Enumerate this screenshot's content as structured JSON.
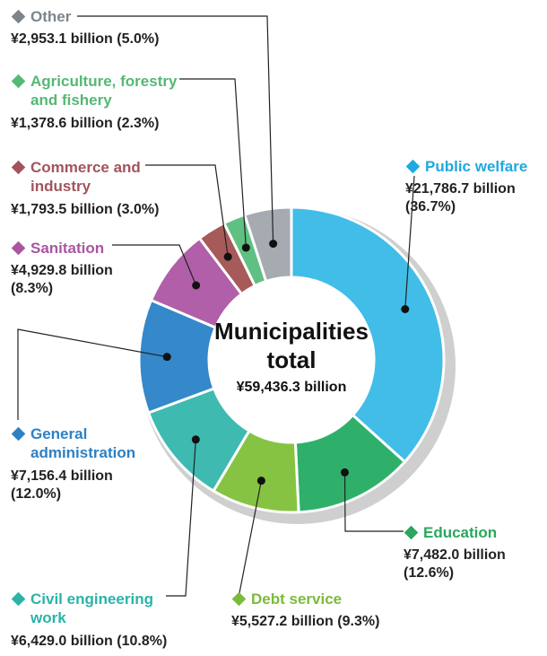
{
  "chart_data": {
    "type": "pie",
    "donut": true,
    "center_title": "Municipalities total",
    "center_title_lines": [
      "Municipalities",
      "total"
    ],
    "center_value": "¥59,436.3 billion",
    "total": 59436.3,
    "unit": "¥ billion",
    "slices": [
      {
        "key": "public_welfare",
        "name": "Public welfare",
        "name_lines": [
          "Public welfare"
        ],
        "value": 21786.7,
        "percent": 36.7,
        "value_lines": [
          "¥21,786.7 billion",
          "(36.7%)"
        ],
        "color": "#41bde8",
        "label_color": "#1ea9e0"
      },
      {
        "key": "education",
        "name": "Education",
        "name_lines": [
          "Education"
        ],
        "value": 7482.0,
        "percent": 12.6,
        "value_lines": [
          "¥7,482.0 billion",
          "(12.6%)"
        ],
        "color": "#2fb06a",
        "label_color": "#2aa65e"
      },
      {
        "key": "debt_service",
        "name": "Debt service",
        "name_lines": [
          "Debt service"
        ],
        "value": 5527.2,
        "percent": 9.3,
        "value_lines": [
          "¥5,527.2 billion (9.3%)"
        ],
        "color": "#86c342",
        "label_color": "#7cba3b"
      },
      {
        "key": "civil_engineering",
        "name": "Civil engineering work",
        "name_lines": [
          "Civil engineering",
          "work"
        ],
        "value": 6429.0,
        "percent": 10.8,
        "value_lines": [
          "¥6,429.0 billion (10.8%)"
        ],
        "color": "#3ebab0",
        "label_color": "#2bb3a8"
      },
      {
        "key": "general_admin",
        "name": "General administration",
        "name_lines": [
          "General",
          "administration"
        ],
        "value": 7156.4,
        "percent": 12.0,
        "value_lines": [
          "¥7,156.4 billion",
          "(12.0%)"
        ],
        "color": "#3588c9",
        "label_color": "#2e80c4"
      },
      {
        "key": "sanitation",
        "name": "Sanitation",
        "name_lines": [
          "Sanitation"
        ],
        "value": 4929.8,
        "percent": 8.3,
        "value_lines": [
          "¥4,929.8 billion",
          "(8.3%)"
        ],
        "color": "#b05fa8",
        "label_color": "#a9569f"
      },
      {
        "key": "commerce",
        "name": "Commerce and industry",
        "name_lines": [
          "Commerce and",
          "industry"
        ],
        "value": 1793.5,
        "percent": 3.0,
        "value_lines": [
          "¥1,793.5 billion (3.0%)"
        ],
        "color": "#a65a5a",
        "label_color": "#a3545b"
      },
      {
        "key": "agriculture",
        "name": "Agriculture, forestry and fishery",
        "name_lines": [
          "Agriculture, forestry",
          "and fishery"
        ],
        "value": 1378.6,
        "percent": 2.3,
        "value_lines": [
          "¥1,378.6 billion (2.3%)"
        ],
        "color": "#5fc082",
        "label_color": "#55b874"
      },
      {
        "key": "other",
        "name": "Other",
        "name_lines": [
          "Other"
        ],
        "value": 2953.1,
        "percent": 5.0,
        "value_lines": [
          "¥2,953.1 billion (5.0%)"
        ],
        "color": "#a6abb1",
        "label_color": "#7d858b"
      }
    ]
  }
}
